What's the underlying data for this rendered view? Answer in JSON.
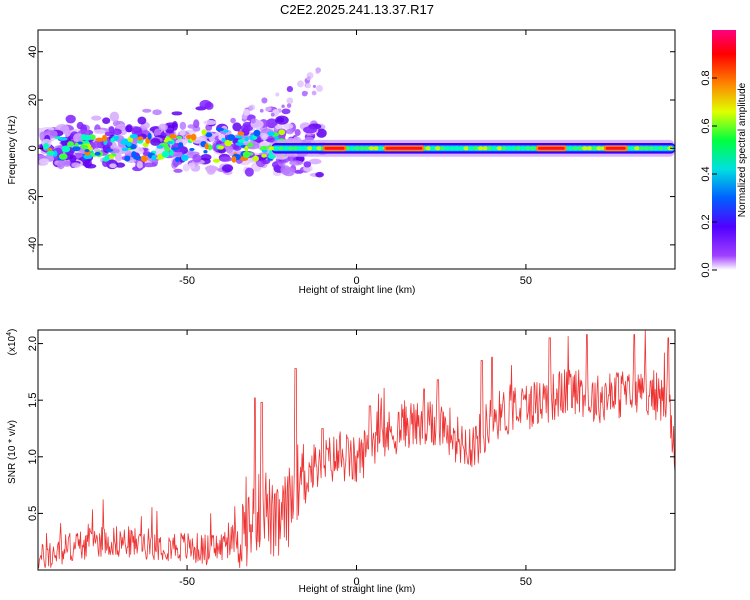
{
  "title": "C2E2.2025.241.13.37.R17",
  "chart_data": [
    {
      "type": "heatmap",
      "id": "spectrogram",
      "xlabel": "Height of straight line (km)",
      "ylabel": "Frequency (Hz)",
      "xlim": [
        -94,
        94
      ],
      "ylim": [
        -50,
        49
      ],
      "xticks": [
        "-50",
        "0",
        "50"
      ],
      "xtick_values": [
        -50,
        0,
        50
      ],
      "yticks": [
        "40",
        "20",
        "0",
        "-20",
        "-40"
      ],
      "ytick_values": [
        40,
        20,
        0,
        -20,
        -40
      ],
      "colorbar": {
        "label": "Normalized spectral amplitude",
        "range": [
          0,
          1
        ],
        "ticks": [
          "0.0",
          "0.2",
          "0.4",
          "0.6",
          "0.8"
        ],
        "tick_values": [
          0.0,
          0.2,
          0.4,
          0.6,
          0.8
        ]
      },
      "features": {
        "noisy_scatter_region_x": [
          -94,
          -15
        ],
        "scatter_frequency_spread_hz": [
          -18,
          20
        ],
        "narrow_line_region_x": [
          -25,
          94
        ],
        "narrow_line_frequency_hz": 0,
        "peak_amplitude_segments_x": [
          [
            -10,
            -3
          ],
          [
            8,
            20
          ],
          [
            53,
            62
          ],
          [
            73,
            80
          ]
        ]
      }
    },
    {
      "type": "line",
      "id": "snr",
      "xlabel": "Height of straight line (km)",
      "ylabel": "SNR (10 * v/v)",
      "yscale_note": "(x10",
      "yscale_exp": "4",
      "xlim": [
        -94,
        94
      ],
      "ylim": [
        0,
        2.12
      ],
      "xticks": [
        "-50",
        "0",
        "50"
      ],
      "xtick_values": [
        -50,
        0,
        50
      ],
      "yticks": [
        "0.5",
        "1.0",
        "1.5",
        "2.0"
      ],
      "ytick_values": [
        0.5,
        1.0,
        1.5,
        2.0
      ],
      "color": "#ee3333",
      "x_anchor": [
        -94,
        -85,
        -75,
        -65,
        -55,
        -45,
        -40,
        -35,
        -30,
        -27,
        -24,
        -20,
        -18,
        -15,
        -10,
        -5,
        0,
        5,
        10,
        15,
        20,
        25,
        30,
        35,
        40,
        45,
        50,
        55,
        60,
        65,
        70,
        75,
        80,
        85,
        88,
        90,
        92,
        94
      ],
      "y_anchor": [
        0.08,
        0.2,
        0.26,
        0.24,
        0.22,
        0.18,
        0.2,
        0.3,
        0.45,
        0.6,
        0.35,
        0.55,
        0.75,
        0.85,
        0.95,
        1.0,
        0.95,
        1.15,
        1.2,
        1.3,
        1.25,
        1.3,
        1.15,
        1.1,
        1.35,
        1.4,
        1.45,
        1.5,
        1.55,
        1.6,
        1.5,
        1.55,
        1.55,
        1.6,
        1.55,
        1.5,
        1.55,
        0.95
      ],
      "spikes": [
        {
          "x": -30,
          "y": 1.52
        },
        {
          "x": -28,
          "y": 1.48
        },
        {
          "x": -18,
          "y": 1.78
        },
        {
          "x": -10,
          "y": 1.25
        },
        {
          "x": 4,
          "y": 1.45
        },
        {
          "x": 20,
          "y": 1.6
        },
        {
          "x": 24,
          "y": 1.68
        },
        {
          "x": 37,
          "y": 1.85
        },
        {
          "x": 40,
          "y": 1.88
        },
        {
          "x": 57,
          "y": 2.05
        },
        {
          "x": 68,
          "y": 2.08
        },
        {
          "x": 82,
          "y": 2.08
        },
        {
          "x": 92,
          "y": 2.05
        }
      ]
    }
  ]
}
